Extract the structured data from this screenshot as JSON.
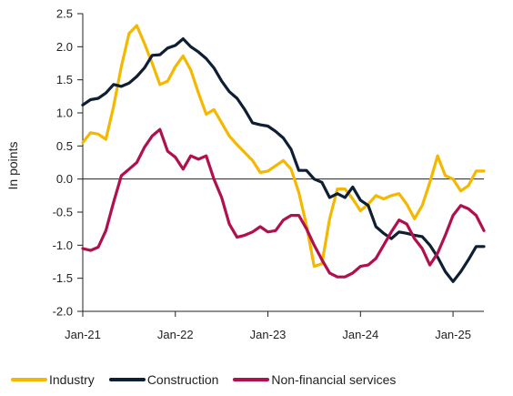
{
  "chart_data": {
    "type": "line",
    "title": "",
    "ylabel": "In points",
    "xlabel": "",
    "ylim": [
      -2.0,
      2.5
    ],
    "yticks": [
      "2.5",
      "2.0",
      "1.5",
      "1.0",
      "0.5",
      "0.0",
      "-0.5",
      "-1.0",
      "-1.5",
      "-2.0"
    ],
    "xticks": [
      "Jan-21",
      "Jan-22",
      "Jan-23",
      "Jan-24",
      "Jan-25"
    ],
    "xtick_months": [
      "2021-01",
      "2022-01",
      "2023-01",
      "2024-01",
      "2025-01"
    ],
    "x_range": [
      "2021-01",
      "2025-05"
    ],
    "zero_line": true,
    "grid": false,
    "legend_position": "bottom",
    "x": [
      "2021-01",
      "2021-02",
      "2021-03",
      "2021-04",
      "2021-05",
      "2021-06",
      "2021-07",
      "2021-08",
      "2021-09",
      "2021-10",
      "2021-11",
      "2021-12",
      "2022-01",
      "2022-02",
      "2022-03",
      "2022-04",
      "2022-05",
      "2022-06",
      "2022-07",
      "2022-08",
      "2022-09",
      "2022-10",
      "2022-11",
      "2022-12",
      "2023-01",
      "2023-02",
      "2023-03",
      "2023-04",
      "2023-05",
      "2023-06",
      "2023-07",
      "2023-08",
      "2023-09",
      "2023-10",
      "2023-11",
      "2023-12",
      "2024-01",
      "2024-02",
      "2024-03",
      "2024-04",
      "2024-05",
      "2024-06",
      "2024-07",
      "2024-08",
      "2024-09",
      "2024-10",
      "2024-11",
      "2024-12",
      "2025-01",
      "2025-02",
      "2025-03",
      "2025-04",
      "2025-05"
    ],
    "series": [
      {
        "name": "Industry",
        "color": "#F5B800",
        "values": [
          0.55,
          0.7,
          0.68,
          0.6,
          1.1,
          1.7,
          2.2,
          2.32,
          2.05,
          1.75,
          1.43,
          1.48,
          1.7,
          1.86,
          1.65,
          1.3,
          0.98,
          1.05,
          0.85,
          0.65,
          0.52,
          0.4,
          0.28,
          0.1,
          0.12,
          0.2,
          0.28,
          0.15,
          -0.2,
          -0.7,
          -1.32,
          -1.28,
          -0.6,
          -0.15,
          -0.15,
          -0.3,
          -0.48,
          -0.38,
          -0.25,
          -0.3,
          -0.25,
          -0.22,
          -0.38,
          -0.6,
          -0.4,
          -0.05,
          0.35,
          0.05,
          0.0,
          -0.18,
          -0.1,
          0.12,
          0.12
        ]
      },
      {
        "name": "Construction",
        "color": "#0E1E33",
        "values": [
          1.12,
          1.2,
          1.22,
          1.3,
          1.43,
          1.4,
          1.45,
          1.55,
          1.68,
          1.87,
          1.88,
          1.98,
          2.02,
          2.12,
          2.0,
          1.92,
          1.82,
          1.68,
          1.48,
          1.32,
          1.22,
          1.05,
          0.85,
          0.82,
          0.8,
          0.72,
          0.62,
          0.45,
          0.13,
          0.13,
          0.0,
          -0.05,
          -0.28,
          -0.22,
          -0.28,
          -0.12,
          -0.32,
          -0.4,
          -0.72,
          -0.82,
          -0.9,
          -0.8,
          -0.82,
          -0.85,
          -0.87,
          -1.0,
          -1.18,
          -1.4,
          -1.55,
          -1.4,
          -1.22,
          -1.02,
          -1.02
        ]
      },
      {
        "name": "Non-financial services",
        "color": "#B0104E",
        "values": [
          -1.05,
          -1.08,
          -1.03,
          -0.78,
          -0.35,
          0.05,
          0.15,
          0.25,
          0.48,
          0.65,
          0.75,
          0.42,
          0.33,
          0.15,
          0.35,
          0.3,
          0.35,
          0.0,
          -0.28,
          -0.68,
          -0.88,
          -0.85,
          -0.8,
          -0.72,
          -0.8,
          -0.78,
          -0.62,
          -0.55,
          -0.55,
          -0.75,
          -1.0,
          -1.22,
          -1.42,
          -1.48,
          -1.48,
          -1.42,
          -1.32,
          -1.3,
          -1.2,
          -1.0,
          -0.8,
          -0.62,
          -0.68,
          -0.9,
          -1.05,
          -1.3,
          -1.12,
          -0.85,
          -0.55,
          -0.4,
          -0.45,
          -0.55,
          -0.78
        ]
      }
    ]
  }
}
